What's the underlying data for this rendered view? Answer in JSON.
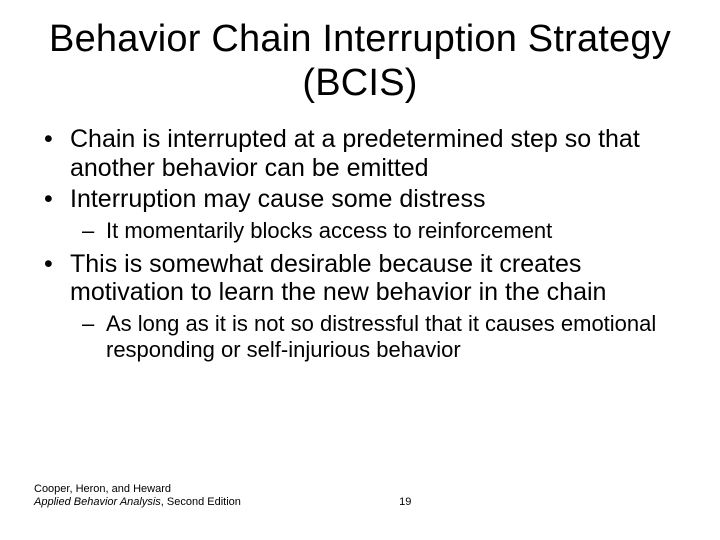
{
  "title": "Behavior Chain Interruption Strategy (BCIS)",
  "bullets": {
    "b1": "Chain is interrupted at a predetermined step so that another behavior can be emitted",
    "b2": "Interruption may cause some distress",
    "b2_sub": "It momentarily blocks access to reinforcement",
    "b3": "This is somewhat desirable because it creates motivation to learn the new behavior in the chain",
    "b3_sub": "As long as it is not so distressful that it causes emotional responding or self-injurious behavior"
  },
  "footer": {
    "authors": "Cooper, Heron, and Heward",
    "book_italic": "Applied Behavior Analysis",
    "book_plain": ", Second Edition",
    "page": "19"
  },
  "style": {
    "background": "#ffffff",
    "text_color": "#000000",
    "title_fontsize": 38,
    "body_fontsize": 25,
    "sub_fontsize": 22,
    "footer_fontsize": 11
  }
}
